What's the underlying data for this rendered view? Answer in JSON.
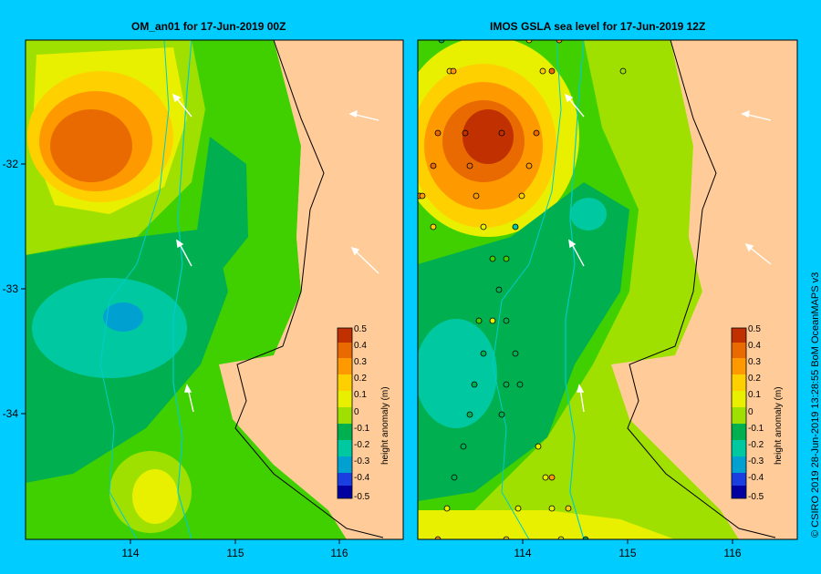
{
  "left_panel": {
    "title": "OM_an01  for 17-Jun-2019 00Z",
    "x_ticks": [
      "114",
      "115",
      "116"
    ],
    "y_ticks": [
      "-32",
      "-33",
      "-34"
    ]
  },
  "right_panel": {
    "title": "IMOS GSLA sea level  for 17-Jun-2019 12Z",
    "x_ticks": [
      "114",
      "115",
      "116"
    ]
  },
  "colorbar": {
    "label": "height anomaly (m)",
    "ticks": [
      "0.5",
      "0.4",
      "0.3",
      "0.2",
      "0.1",
      "0",
      "-0.1",
      "-0.2",
      "-0.3",
      "-0.4",
      "-0.5"
    ]
  },
  "credit": "© CSIRO 2019   28-Jun-2019 13:28:55 BoM OceanMAPS v3",
  "colors": {
    "frame": "#00ccff",
    "land": "#ffcc99",
    "scale": [
      "#3d0080",
      "#0000a0",
      "#1a3fe0",
      "#00a0d0",
      "#00c8a0",
      "#00b050",
      "#40d000",
      "#a0e000",
      "#e8f000",
      "#ffd000",
      "#ff9900",
      "#e86a00",
      "#c03000"
    ]
  }
}
